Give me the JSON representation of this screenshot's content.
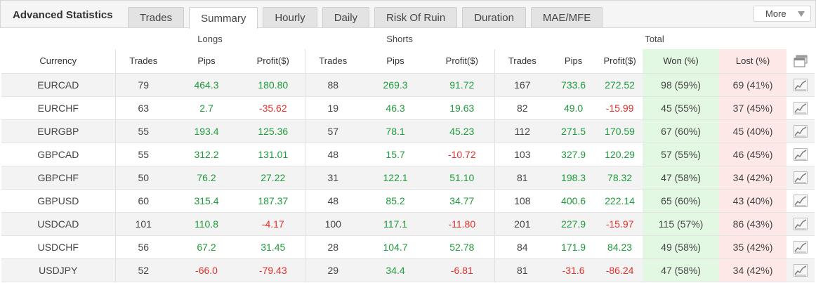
{
  "header": {
    "title": "Advanced Statistics",
    "tabs": [
      "Trades",
      "Summary",
      "Hourly",
      "Daily",
      "Risk Of Ruin",
      "Duration",
      "MAE/MFE"
    ],
    "active_tab": "Summary",
    "more_label": "More"
  },
  "table": {
    "groups": {
      "longs": "Longs",
      "shorts": "Shorts",
      "total": "Total"
    },
    "columns": {
      "currency": "Currency",
      "longs_trades": "Trades",
      "longs_pips": "Pips",
      "longs_profit": "Profit($)",
      "shorts_trades": "Trades",
      "shorts_pips": "Pips",
      "shorts_profit": "Profit($)",
      "total_trades": "Trades",
      "total_pips": "Pips",
      "total_profit": "Profit($)",
      "won": "Won (%)",
      "lost": "Lost (%)"
    },
    "rows": [
      {
        "currency": "EURCAD",
        "lt": "79",
        "lp": "464.3",
        "lpr": "180.80",
        "st": "88",
        "sp": "269.3",
        "spr": "91.72",
        "tt": "167",
        "tp": "733.6",
        "tpr": "272.52",
        "won": "98 (59%)",
        "lost": "69 (41%)"
      },
      {
        "currency": "EURCHF",
        "lt": "63",
        "lp": "2.7",
        "lpr": "-35.62",
        "st": "19",
        "sp": "46.3",
        "spr": "19.63",
        "tt": "82",
        "tp": "49.0",
        "tpr": "-15.99",
        "won": "45 (55%)",
        "lost": "37 (45%)"
      },
      {
        "currency": "EURGBP",
        "lt": "55",
        "lp": "193.4",
        "lpr": "125.36",
        "st": "57",
        "sp": "78.1",
        "spr": "45.23",
        "tt": "112",
        "tp": "271.5",
        "tpr": "170.59",
        "won": "67 (60%)",
        "lost": "45 (40%)"
      },
      {
        "currency": "GBPCAD",
        "lt": "55",
        "lp": "312.2",
        "lpr": "131.01",
        "st": "48",
        "sp": "15.7",
        "spr": "-10.72",
        "tt": "103",
        "tp": "327.9",
        "tpr": "120.29",
        "won": "57 (55%)",
        "lost": "46 (45%)"
      },
      {
        "currency": "GBPCHF",
        "lt": "50",
        "lp": "76.2",
        "lpr": "27.22",
        "st": "31",
        "sp": "122.1",
        "spr": "51.10",
        "tt": "81",
        "tp": "198.3",
        "tpr": "78.32",
        "won": "47 (58%)",
        "lost": "34 (42%)"
      },
      {
        "currency": "GBPUSD",
        "lt": "60",
        "lp": "315.4",
        "lpr": "187.37",
        "st": "48",
        "sp": "85.2",
        "spr": "34.77",
        "tt": "108",
        "tp": "400.6",
        "tpr": "222.14",
        "won": "65 (60%)",
        "lost": "43 (40%)"
      },
      {
        "currency": "USDCAD",
        "lt": "101",
        "lp": "110.8",
        "lpr": "-4.17",
        "st": "100",
        "sp": "117.1",
        "spr": "-11.80",
        "tt": "201",
        "tp": "227.9",
        "tpr": "-15.97",
        "won": "115 (57%)",
        "lost": "86 (43%)"
      },
      {
        "currency": "USDCHF",
        "lt": "56",
        "lp": "67.2",
        "lpr": "31.45",
        "st": "28",
        "sp": "104.7",
        "spr": "52.78",
        "tt": "84",
        "tp": "171.9",
        "tpr": "84.23",
        "won": "49 (58%)",
        "lost": "35 (42%)"
      },
      {
        "currency": "USDJPY",
        "lt": "52",
        "lp": "-66.0",
        "lpr": "-79.43",
        "st": "29",
        "sp": "34.4",
        "spr": "-6.81",
        "tt": "81",
        "tp": "-31.6",
        "tpr": "-86.24",
        "won": "47 (58%)",
        "lost": "34 (42%)"
      }
    ]
  },
  "icons": {
    "row_action": "line-chart-icon",
    "header_action": "stacked-windows-icon"
  },
  "colors": {
    "positive": "#1e9b3a",
    "negative": "#e0302c",
    "won_bg": "#e3f8e3",
    "lost_bg": "#fde7e7"
  }
}
